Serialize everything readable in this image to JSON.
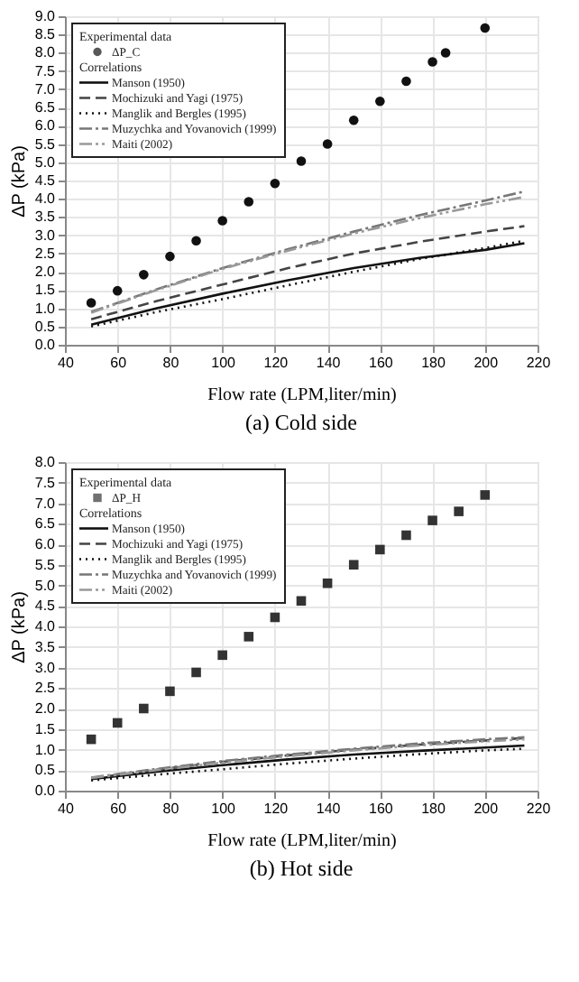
{
  "chart_data": [
    {
      "type": "line",
      "title": "(a) Cold side",
      "xlabel": "Flow rate (LPM,liter/min)",
      "ylabel": "ΔP (kPa)",
      "legend_title": "Experimental data",
      "annotations": [
        "Correlations"
      ],
      "legend": "top left",
      "grid": true,
      "xlim": [
        40,
        220
      ],
      "xticks": [
        40,
        60,
        80,
        100,
        120,
        140,
        160,
        180,
        200,
        220
      ],
      "ylim": [
        0,
        9
      ],
      "yticks": [
        {
          "value": 0,
          "label": "0.0"
        },
        0.5,
        {
          "value": 1,
          "label": "1.0"
        },
        1.5,
        {
          "value": 2,
          "label": "2.0"
        },
        2.5,
        {
          "value": 3,
          "label": "3.0"
        },
        3.5,
        {
          "value": 4,
          "label": "4.0"
        },
        4.5,
        {
          "value": 5,
          "label": "5.0"
        },
        5.5,
        {
          "value": 6,
          "label": "6.0"
        },
        6.5,
        {
          "value": 7,
          "label": "7.0"
        },
        7.5,
        {
          "value": 8,
          "label": "8.0"
        },
        8.5,
        {
          "value": 9,
          "label": "9.0"
        }
      ],
      "series": [
        {
          "name": "ΔP_C",
          "type": "scatter",
          "marker": "circle",
          "color": "#111111",
          "x": [
            50,
            60,
            70,
            80,
            90,
            100,
            110,
            120,
            130,
            140,
            150,
            160,
            170,
            180,
            185,
            200
          ],
          "values": [
            1.15,
            1.48,
            1.92,
            2.42,
            2.85,
            3.4,
            3.92,
            4.42,
            5.03,
            5.5,
            6.15,
            6.67,
            7.22,
            7.75,
            8.0,
            8.68
          ]
        },
        {
          "name": "Manson (1950)",
          "line_style": "solid",
          "color": "#111111",
          "x": [
            50,
            75,
            100,
            125,
            150,
            175,
            200,
            215
          ],
          "values": [
            0.55,
            1.0,
            1.4,
            1.77,
            2.1,
            2.38,
            2.6,
            2.78
          ]
        },
        {
          "name": "Mochizuki and Yagi (1975)",
          "line_style": "dashed",
          "color": "#444444",
          "x": [
            50,
            75,
            100,
            125,
            150,
            175,
            200,
            215
          ],
          "values": [
            0.7,
            1.2,
            1.65,
            2.1,
            2.5,
            2.82,
            3.1,
            3.25
          ]
        },
        {
          "name": "Manglik and Bergles (1995)",
          "line_style": "dotted",
          "color": "#111111",
          "x": [
            50,
            75,
            100,
            125,
            150,
            175,
            200,
            215
          ],
          "values": [
            0.5,
            0.9,
            1.25,
            1.63,
            2.0,
            2.35,
            2.65,
            2.85
          ]
        },
        {
          "name": "Muzychka and Yovanovich (1999)",
          "line_style": "dashdot",
          "color": "#777777",
          "x": [
            50,
            75,
            100,
            125,
            150,
            175,
            200,
            215
          ],
          "values": [
            0.9,
            1.52,
            2.1,
            2.62,
            3.1,
            3.55,
            3.95,
            4.2
          ]
        },
        {
          "name": "Maiti (2002)",
          "line_style": "dashdotdot",
          "color": "#999999",
          "x": [
            50,
            75,
            100,
            125,
            150,
            175,
            200,
            215
          ],
          "values": [
            0.88,
            1.5,
            2.08,
            2.58,
            3.05,
            3.47,
            3.85,
            4.05
          ]
        }
      ]
    },
    {
      "type": "line",
      "title": "(b) Hot side",
      "xlabel": "Flow rate (LPM,liter/min)",
      "ylabel": "ΔP (kPa)",
      "legend_title": "Experimental data",
      "annotations": [
        "Correlations"
      ],
      "legend": "top left",
      "grid": true,
      "xlim": [
        40,
        220
      ],
      "xticks": [
        40,
        60,
        80,
        100,
        120,
        140,
        160,
        180,
        200,
        220
      ],
      "ylim": [
        0,
        8
      ],
      "yticks": [
        {
          "value": 0,
          "label": "0.0"
        },
        0.5,
        {
          "value": 1,
          "label": "1.0"
        },
        1.5,
        {
          "value": 2,
          "label": "2.0"
        },
        2.5,
        {
          "value": 3,
          "label": "3.0"
        },
        3.5,
        {
          "value": 4,
          "label": "4.0"
        },
        4.5,
        {
          "value": 5,
          "label": "5.0"
        },
        5.5,
        {
          "value": 6,
          "label": "6.0"
        },
        6.5,
        {
          "value": 7,
          "label": "7.0"
        },
        7.5,
        {
          "value": 8,
          "label": "8.0"
        }
      ],
      "series": [
        {
          "name": "ΔP_H",
          "type": "scatter",
          "marker": "square",
          "color": "#333333",
          "x": [
            50,
            60,
            70,
            80,
            90,
            100,
            110,
            120,
            130,
            140,
            150,
            160,
            170,
            180,
            190,
            200
          ],
          "values": [
            1.25,
            1.65,
            2.0,
            2.42,
            2.88,
            3.3,
            3.75,
            4.22,
            4.62,
            5.05,
            5.5,
            5.87,
            6.22,
            6.58,
            6.8,
            7.2
          ]
        },
        {
          "name": "Manson (1950)",
          "line_style": "solid",
          "color": "#111111",
          "x": [
            50,
            75,
            100,
            125,
            150,
            175,
            200,
            215
          ],
          "values": [
            0.28,
            0.46,
            0.62,
            0.76,
            0.88,
            0.97,
            1.05,
            1.1
          ]
        },
        {
          "name": "Mochizuki and Yagi (1975)",
          "line_style": "dashed",
          "color": "#444444",
          "x": [
            50,
            75,
            100,
            125,
            150,
            175,
            200,
            215
          ],
          "values": [
            0.3,
            0.51,
            0.7,
            0.86,
            1.0,
            1.12,
            1.22,
            1.28
          ]
        },
        {
          "name": "Manglik and Bergles (1995)",
          "line_style": "dotted",
          "color": "#111111",
          "x": [
            50,
            75,
            100,
            125,
            150,
            175,
            200,
            215
          ],
          "values": [
            0.25,
            0.39,
            0.52,
            0.66,
            0.78,
            0.89,
            0.98,
            1.02
          ]
        },
        {
          "name": "Muzychka and Yovanovich (1999)",
          "line_style": "dashdot",
          "color": "#777777",
          "x": [
            50,
            75,
            100,
            125,
            150,
            175,
            200,
            215
          ],
          "values": [
            0.32,
            0.53,
            0.72,
            0.88,
            1.02,
            1.15,
            1.25,
            1.3
          ]
        },
        {
          "name": "Maiti (2002)",
          "line_style": "dashdotdot",
          "color": "#999999",
          "x": [
            50,
            75,
            100,
            125,
            150,
            175,
            200,
            215
          ],
          "values": [
            0.31,
            0.5,
            0.68,
            0.84,
            0.98,
            1.1,
            1.2,
            1.25
          ]
        }
      ]
    }
  ]
}
